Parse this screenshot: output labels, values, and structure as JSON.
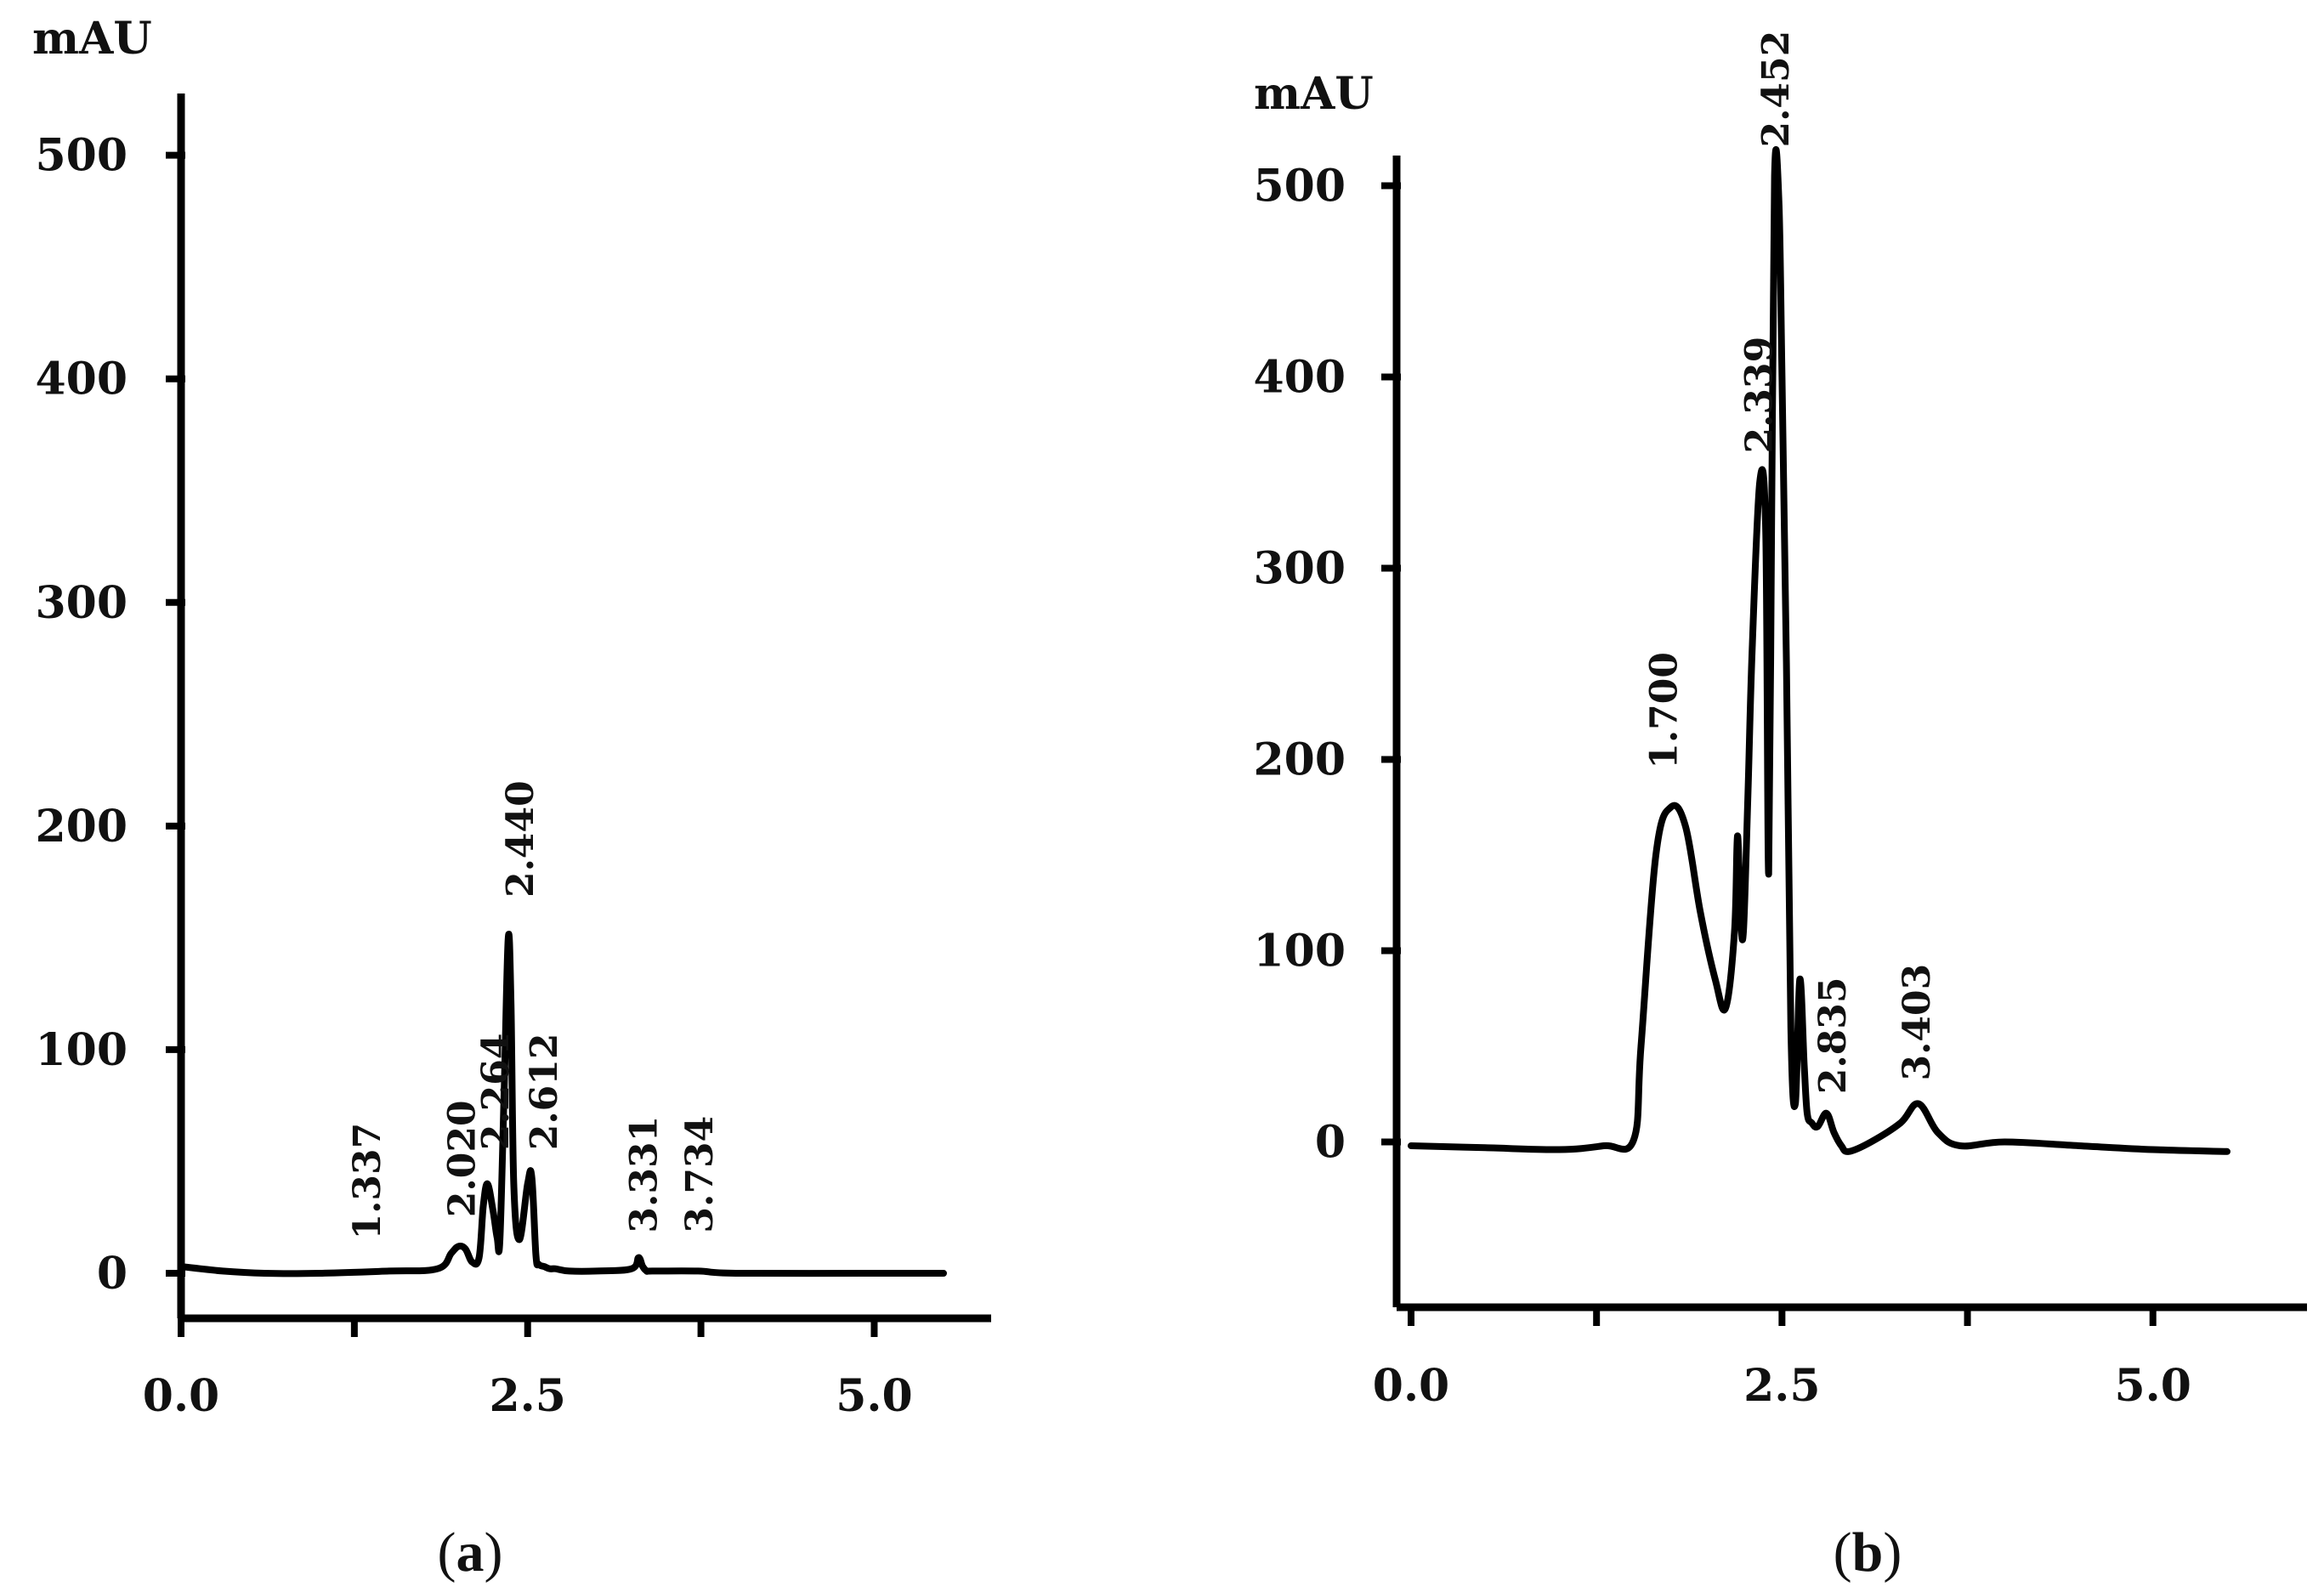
{
  "colors": {
    "trace": "#000000",
    "text": "#111111",
    "background": "#ffffff"
  },
  "chart_data": [
    {
      "type": "line",
      "panel_label": "a",
      "ylabel": "mAU",
      "xlim": [
        0,
        5.5
      ],
      "ylim": [
        0,
        520
      ],
      "xticks": [
        0.0,
        1.25,
        2.5,
        3.75,
        5.0
      ],
      "xtick_labels": [
        "0.0",
        "",
        "2.5",
        "",
        "5.0"
      ],
      "yticks": [
        0,
        100,
        200,
        300,
        400,
        500
      ],
      "ytick_labels": [
        "0",
        "100",
        "200",
        "300",
        "400",
        "500"
      ],
      "grid": false,
      "series": [
        {
          "x": [
            0.0,
            0.3,
            0.6,
            1.0,
            1.5,
            1.85,
            1.95,
            2.0,
            2.05,
            2.1,
            2.15,
            2.18,
            2.21,
            2.25,
            2.28,
            2.3,
            2.33,
            2.36,
            2.38,
            2.4,
            2.44,
            2.5,
            2.53,
            2.56,
            2.58,
            2.62,
            2.66,
            2.7,
            2.8,
            3.0,
            3.25,
            3.3,
            3.33,
            3.36,
            3.4,
            3.73,
            4.0,
            5.0,
            5.5
          ],
          "y": [
            3,
            1,
            0,
            0,
            1,
            2,
            9,
            12,
            11,
            5,
            7,
            30,
            40,
            28,
            16,
            15,
            80,
            150,
            120,
            40,
            15,
            40,
            43,
            8,
            4,
            3,
            2,
            2,
            1,
            1,
            2,
            7,
            3,
            1,
            1,
            1,
            0,
            0,
            0
          ]
        }
      ],
      "peak_labels": [
        {
          "text": "1.337",
          "x": 1.337,
          "y": 15
        },
        {
          "text": "2.020",
          "x": 2.02,
          "y": 25
        },
        {
          "text": "2.264",
          "x": 2.264,
          "y": 55
        },
        {
          "text": "2.440",
          "x": 2.44,
          "y": 168
        },
        {
          "text": "2.612",
          "x": 2.612,
          "y": 55
        },
        {
          "text": "3.331",
          "x": 3.331,
          "y": 18
        },
        {
          "text": "3.734",
          "x": 3.734,
          "y": 18
        }
      ]
    },
    {
      "type": "line",
      "panel_label": "b",
      "ylabel": "mAU",
      "xlim": [
        0,
        5.5
      ],
      "ylim": [
        -50,
        510
      ],
      "xticks": [
        0.0,
        1.25,
        2.5,
        3.75,
        5.0
      ],
      "xtick_labels": [
        "0.0",
        "",
        "2.5",
        "",
        "5.0"
      ],
      "yticks": [
        0,
        100,
        200,
        300,
        400,
        500
      ],
      "ytick_labels": [
        "0",
        "100",
        "200",
        "300",
        "400",
        "500"
      ],
      "grid": false,
      "series": [
        {
          "x": [
            0.0,
            0.5,
            1.0,
            1.3,
            1.5,
            1.55,
            1.65,
            1.75,
            1.85,
            1.95,
            2.05,
            2.12,
            2.18,
            2.2,
            2.22,
            2.24,
            2.27,
            2.3,
            2.35,
            2.39,
            2.41,
            2.43,
            2.45,
            2.48,
            2.5,
            2.53,
            2.56,
            2.59,
            2.62,
            2.65,
            2.67,
            2.7,
            2.74,
            2.8,
            2.85,
            2.9,
            2.95,
            3.1,
            3.3,
            3.42,
            3.55,
            3.7,
            4.0,
            4.5,
            5.0,
            5.5
          ],
          "y": [
            -2,
            -3,
            -4,
            -2,
            1,
            50,
            150,
            175,
            165,
            120,
            85,
            70,
            110,
            160,
            120,
            110,
            180,
            260,
            345,
            320,
            140,
            320,
            505,
            490,
            400,
            250,
            60,
            20,
            85,
            40,
            15,
            10,
            8,
            15,
            5,
            -2,
            -5,
            0,
            10,
            20,
            5,
            -2,
            0,
            -2,
            -4,
            -5
          ]
        }
      ],
      "peak_labels": [
        {
          "text": "1.700",
          "x": 1.7,
          "y": 195
        },
        {
          "text": "2.339",
          "x": 2.339,
          "y": 360
        },
        {
          "text": "2.452",
          "x": 2.452,
          "y": 520
        },
        {
          "text": "2.835",
          "x": 2.835,
          "y": 25
        },
        {
          "text": "3.403",
          "x": 3.403,
          "y": 32
        }
      ]
    }
  ]
}
